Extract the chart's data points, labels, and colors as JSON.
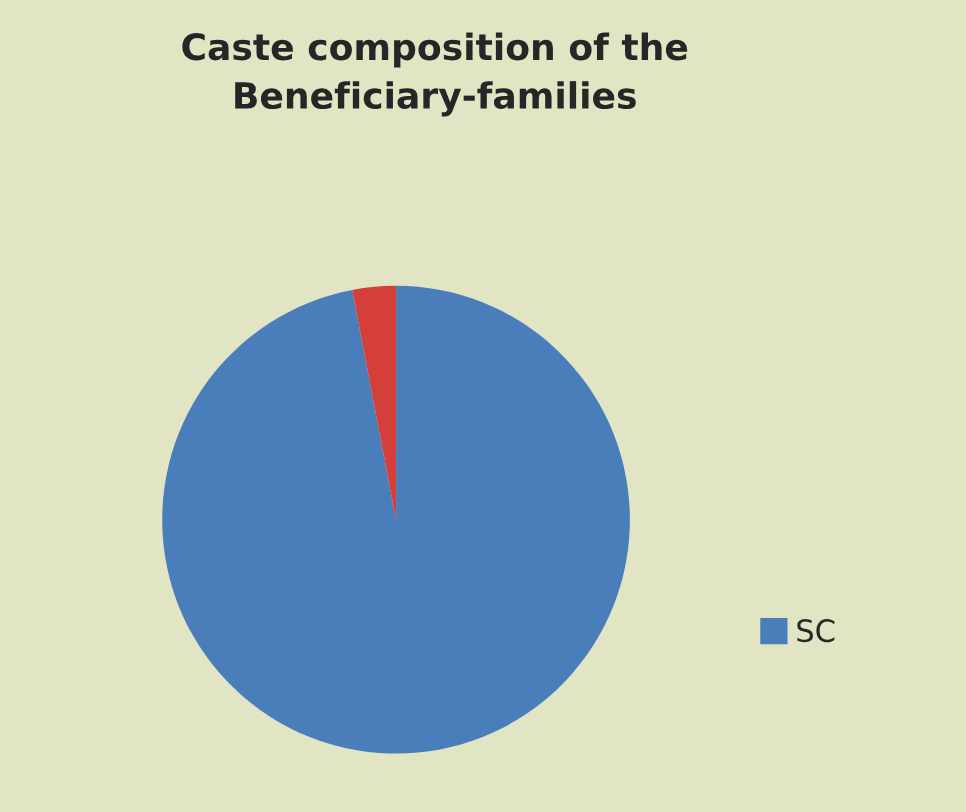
{
  "chart_data": {
    "type": "pie",
    "title": "Caste composition of the\nBeneficiary-families",
    "categories": [
      "SC",
      null
    ],
    "values": [
      97,
      3
    ],
    "colors": [
      "#4a7ebb",
      "#d43f3a"
    ],
    "legend": "right"
  }
}
